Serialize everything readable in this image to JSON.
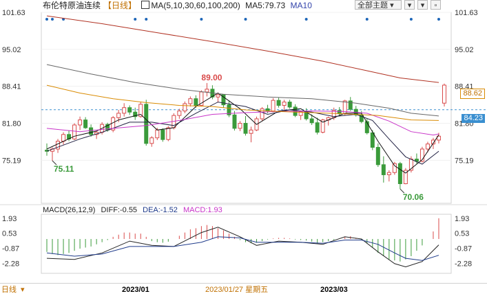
{
  "header": {
    "instrument": "布伦特原油连续",
    "period": "【日线】",
    "ma_label": "MA(5,10,30,60,100,200)",
    "ma5_label": "MA5:79.73",
    "ma10_label": "MA10"
  },
  "toolbar": {
    "theme_label": "全部主题",
    "arrow_down": "▾"
  },
  "colors": {
    "up": "#d94a4a",
    "down": "#3a9a3a",
    "ma5": "#111111",
    "ma10": "#222244",
    "ma30": "#c833c8",
    "ma60": "#d98a00",
    "ma100": "#666666",
    "ma200": "#b03020",
    "dif": "#222222",
    "dea": "#1e3a8a",
    "macd": "#c833c8"
  },
  "chart_data": {
    "type": "candlestick",
    "price_ticks": [
      "101.63",
      "95.02",
      "88.41",
      "81.80",
      "75.19"
    ],
    "ylim": [
      67.5,
      101.63
    ],
    "annotations": {
      "high": "89.00",
      "low1": "75.11",
      "low2": "70.06"
    },
    "last_price": "88.62",
    "dashed_price": "84.23",
    "dashed_value": 84.23,
    "candles": [
      [
        77.0,
        78.2,
        76.0,
        76.8
      ],
      [
        76.8,
        77.5,
        75.1,
        77.2
      ],
      [
        77.2,
        79.0,
        76.5,
        78.6
      ],
      [
        78.6,
        80.2,
        78.0,
        79.8
      ],
      [
        79.8,
        80.5,
        78.6,
        79.0
      ],
      [
        79.0,
        81.8,
        78.8,
        81.5
      ],
      [
        81.5,
        83.0,
        80.6,
        82.4
      ],
      [
        82.4,
        82.9,
        80.8,
        81.0
      ],
      [
        81.0,
        81.6,
        79.4,
        79.8
      ],
      [
        79.8,
        80.4,
        79.0,
        80.2
      ],
      [
        80.2,
        82.0,
        79.8,
        81.6
      ],
      [
        81.6,
        81.9,
        80.3,
        80.6
      ],
      [
        80.6,
        83.1,
        80.2,
        82.8
      ],
      [
        82.8,
        84.2,
        82.0,
        83.6
      ],
      [
        83.6,
        85.4,
        83.0,
        84.6
      ],
      [
        84.6,
        85.0,
        83.3,
        83.8
      ],
      [
        83.8,
        84.6,
        82.4,
        83.0
      ],
      [
        83.0,
        85.6,
        82.8,
        85.2
      ],
      [
        85.2,
        86.0,
        77.8,
        78.2
      ],
      [
        78.2,
        79.5,
        77.6,
        79.2
      ],
      [
        79.2,
        81.0,
        78.8,
        80.6
      ],
      [
        80.6,
        80.9,
        78.5,
        78.9
      ],
      [
        78.9,
        81.3,
        78.6,
        81.0
      ],
      [
        81.0,
        83.6,
        80.7,
        83.2
      ],
      [
        83.2,
        84.4,
        82.6,
        84.0
      ],
      [
        84.0,
        85.7,
        83.6,
        85.3
      ],
      [
        85.3,
        86.6,
        84.8,
        86.2
      ],
      [
        86.2,
        86.8,
        84.6,
        85.0
      ],
      [
        85.0,
        87.7,
        84.8,
        87.4
      ],
      [
        87.4,
        89.0,
        86.6,
        87.9
      ],
      [
        87.9,
        88.6,
        86.1,
        86.5
      ],
      [
        86.5,
        87.3,
        85.5,
        86.9
      ],
      [
        86.9,
        87.0,
        84.6,
        85.1
      ],
      [
        85.1,
        85.9,
        82.9,
        83.3
      ],
      [
        83.3,
        84.0,
        80.5,
        80.9
      ],
      [
        80.9,
        82.2,
        80.4,
        81.8
      ],
      [
        81.8,
        83.1,
        79.6,
        80.0
      ],
      [
        80.0,
        81.2,
        78.4,
        80.6
      ],
      [
        80.6,
        83.0,
        80.4,
        82.6
      ],
      [
        82.6,
        84.7,
        82.2,
        84.4
      ],
      [
        84.4,
        85.1,
        83.6,
        84.0
      ],
      [
        84.0,
        86.3,
        83.8,
        85.9
      ],
      [
        85.9,
        86.4,
        84.6,
        85.0
      ],
      [
        85.0,
        86.0,
        84.2,
        85.6
      ],
      [
        85.6,
        86.0,
        84.4,
        84.7
      ],
      [
        84.7,
        85.2,
        82.9,
        83.2
      ],
      [
        83.2,
        84.1,
        82.4,
        83.9
      ],
      [
        83.9,
        84.5,
        82.3,
        82.6
      ],
      [
        82.6,
        83.4,
        81.5,
        81.9
      ],
      [
        81.9,
        82.8,
        79.8,
        80.2
      ],
      [
        80.2,
        82.6,
        80.0,
        82.4
      ],
      [
        82.4,
        83.0,
        81.4,
        82.8
      ],
      [
        82.8,
        84.6,
        82.4,
        84.1
      ],
      [
        84.1,
        84.7,
        83.1,
        83.5
      ],
      [
        83.5,
        86.0,
        83.2,
        85.8
      ],
      [
        85.8,
        86.5,
        84.0,
        84.3
      ],
      [
        84.3,
        84.9,
        83.0,
        83.3
      ],
      [
        83.3,
        84.0,
        81.8,
        82.1
      ],
      [
        82.1,
        82.6,
        79.8,
        80.1
      ],
      [
        80.1,
        80.6,
        77.0,
        77.5
      ],
      [
        77.5,
        78.2,
        74.0,
        74.4
      ],
      [
        74.4,
        75.9,
        71.2,
        72.6
      ],
      [
        72.6,
        73.4,
        71.4,
        73.0
      ],
      [
        73.0,
        74.9,
        72.6,
        74.6
      ],
      [
        74.6,
        74.9,
        70.06,
        71.0
      ],
      [
        71.0,
        73.8,
        70.9,
        73.4
      ],
      [
        73.4,
        75.9,
        73.0,
        75.4
      ],
      [
        75.4,
        76.4,
        74.6,
        75.0
      ],
      [
        75.0,
        77.6,
        74.8,
        77.2
      ],
      [
        77.2,
        78.5,
        76.6,
        78.1
      ],
      [
        78.1,
        79.2,
        77.2,
        78.8
      ],
      [
        78.8,
        80.1,
        78.2,
        79.5
      ],
      [
        85.4,
        88.9,
        84.8,
        88.62
      ]
    ],
    "ma": {
      "ma5": [
        [
          0,
          77.2
        ],
        [
          5,
          79.5
        ],
        [
          9,
          80.4
        ],
        [
          13,
          82.4
        ],
        [
          17,
          83.4
        ],
        [
          20,
          80.6
        ],
        [
          23,
          81.0
        ],
        [
          27,
          84.8
        ],
        [
          31,
          87.2
        ],
        [
          35,
          84.4
        ],
        [
          38,
          81.6
        ],
        [
          42,
          84.0
        ],
        [
          46,
          84.4
        ],
        [
          50,
          82.0
        ],
        [
          54,
          83.6
        ],
        [
          57,
          83.6
        ],
        [
          60,
          78.6
        ],
        [
          63,
          74.2
        ],
        [
          65,
          72.9
        ],
        [
          68,
          75.3
        ],
        [
          71,
          79.73
        ]
      ],
      "ma10": [
        [
          0,
          76.8
        ],
        [
          6,
          79.0
        ],
        [
          10,
          80.2
        ],
        [
          15,
          82.0
        ],
        [
          19,
          82.0
        ],
        [
          23,
          81.4
        ],
        [
          27,
          83.6
        ],
        [
          31,
          85.6
        ],
        [
          36,
          84.8
        ],
        [
          40,
          83.4
        ],
        [
          44,
          84.2
        ],
        [
          48,
          83.8
        ],
        [
          52,
          83.0
        ],
        [
          56,
          83.4
        ],
        [
          59,
          82.3
        ],
        [
          62,
          79.0
        ],
        [
          65,
          75.8
        ],
        [
          68,
          74.5
        ],
        [
          71,
          76.8
        ]
      ],
      "ma30": [
        [
          0,
          80.9
        ],
        [
          6,
          80.3
        ],
        [
          12,
          80.9
        ],
        [
          18,
          81.4
        ],
        [
          24,
          82.3
        ],
        [
          30,
          83.4
        ],
        [
          36,
          83.7
        ],
        [
          42,
          83.9
        ],
        [
          48,
          84.0
        ],
        [
          54,
          83.9
        ],
        [
          58,
          83.6
        ],
        [
          62,
          82.2
        ],
        [
          66,
          80.3
        ],
        [
          70,
          79.7
        ],
        [
          71,
          79.9
        ]
      ],
      "ma60": [
        [
          0,
          88.6
        ],
        [
          6,
          87.2
        ],
        [
          12,
          86.2
        ],
        [
          18,
          85.5
        ],
        [
          24,
          85.0
        ],
        [
          30,
          84.8
        ],
        [
          36,
          84.2
        ],
        [
          42,
          83.9
        ],
        [
          48,
          83.7
        ],
        [
          54,
          83.5
        ],
        [
          60,
          83.2
        ],
        [
          66,
          82.4
        ],
        [
          71,
          82.3
        ]
      ],
      "ma100": [
        [
          0,
          92.3
        ],
        [
          8,
          90.6
        ],
        [
          16,
          89.1
        ],
        [
          24,
          87.9
        ],
        [
          32,
          87.0
        ],
        [
          40,
          86.5
        ],
        [
          48,
          86.2
        ],
        [
          56,
          85.4
        ],
        [
          62,
          84.5
        ],
        [
          66,
          83.6
        ],
        [
          71,
          83.1
        ]
      ],
      "ma200": [
        [
          0,
          101.0
        ],
        [
          10,
          99.6
        ],
        [
          20,
          98.0
        ],
        [
          30,
          96.4
        ],
        [
          40,
          94.7
        ],
        [
          50,
          92.9
        ],
        [
          58,
          91.2
        ],
        [
          64,
          89.9
        ],
        [
          71,
          89.1
        ]
      ]
    },
    "macd": {
      "label": "MACD(26,12,9)",
      "dif_label": "DIFF:-0.55",
      "dea_label": "DEA:-1.52",
      "macd_label": "MACD:1.93",
      "ticks": [
        "1.93",
        "0.53",
        "-0.87",
        "-2.28"
      ],
      "ylim": [
        -3.2,
        2.3
      ],
      "bars": [
        -1.2,
        -1.4,
        -1.5,
        -1.4,
        -1.3,
        -1.1,
        -0.9,
        -0.8,
        -0.7,
        -0.5,
        -0.3,
        -0.1,
        0.2,
        0.4,
        0.6,
        0.6,
        0.5,
        0.5,
        0.2,
        -0.2,
        -0.3,
        -0.35,
        -0.25,
        0.0,
        0.3,
        0.6,
        0.9,
        1.0,
        1.2,
        1.3,
        1.2,
        1.0,
        0.8,
        0.5,
        0.2,
        -0.1,
        -0.3,
        -0.4,
        -0.35,
        -0.2,
        -0.05,
        0.05,
        0.1,
        0.1,
        0.05,
        -0.05,
        -0.1,
        -0.15,
        -0.25,
        -0.35,
        -0.3,
        -0.2,
        -0.1,
        0.0,
        0.2,
        0.25,
        0.1,
        -0.1,
        -0.4,
        -0.8,
        -1.3,
        -1.6,
        -1.9,
        -2.0,
        -2.1,
        -1.9,
        -1.6,
        -1.1,
        -0.6,
        0.0,
        0.7,
        1.93
      ],
      "dif": [
        [
          0,
          -1.8
        ],
        [
          5,
          -1.9
        ],
        [
          10,
          -1.3
        ],
        [
          15,
          -0.2
        ],
        [
          19,
          -0.6
        ],
        [
          23,
          -0.7
        ],
        [
          28,
          0.6
        ],
        [
          31,
          1.1
        ],
        [
          35,
          0.2
        ],
        [
          38,
          -0.6
        ],
        [
          42,
          -0.2
        ],
        [
          46,
          -0.3
        ],
        [
          50,
          -0.5
        ],
        [
          54,
          0.2
        ],
        [
          57,
          0.0
        ],
        [
          60,
          -1.2
        ],
        [
          63,
          -2.3
        ],
        [
          65,
          -2.6
        ],
        [
          68,
          -2.1
        ],
        [
          71,
          -0.55
        ]
      ],
      "dea": [
        [
          0,
          -1.3
        ],
        [
          5,
          -1.6
        ],
        [
          10,
          -1.4
        ],
        [
          15,
          -0.7
        ],
        [
          19,
          -0.7
        ],
        [
          23,
          -0.7
        ],
        [
          28,
          -0.3
        ],
        [
          31,
          0.2
        ],
        [
          35,
          0.1
        ],
        [
          38,
          -0.3
        ],
        [
          42,
          -0.3
        ],
        [
          46,
          -0.3
        ],
        [
          50,
          -0.4
        ],
        [
          54,
          -0.1
        ],
        [
          57,
          -0.1
        ],
        [
          60,
          -0.5
        ],
        [
          63,
          -1.3
        ],
        [
          65,
          -1.8
        ],
        [
          68,
          -2.0
        ],
        [
          71,
          -1.52
        ]
      ]
    },
    "x_labels": {
      "left": "2023/01",
      "mid": "2023/01/27 星期五",
      "right": "2023/03"
    }
  }
}
